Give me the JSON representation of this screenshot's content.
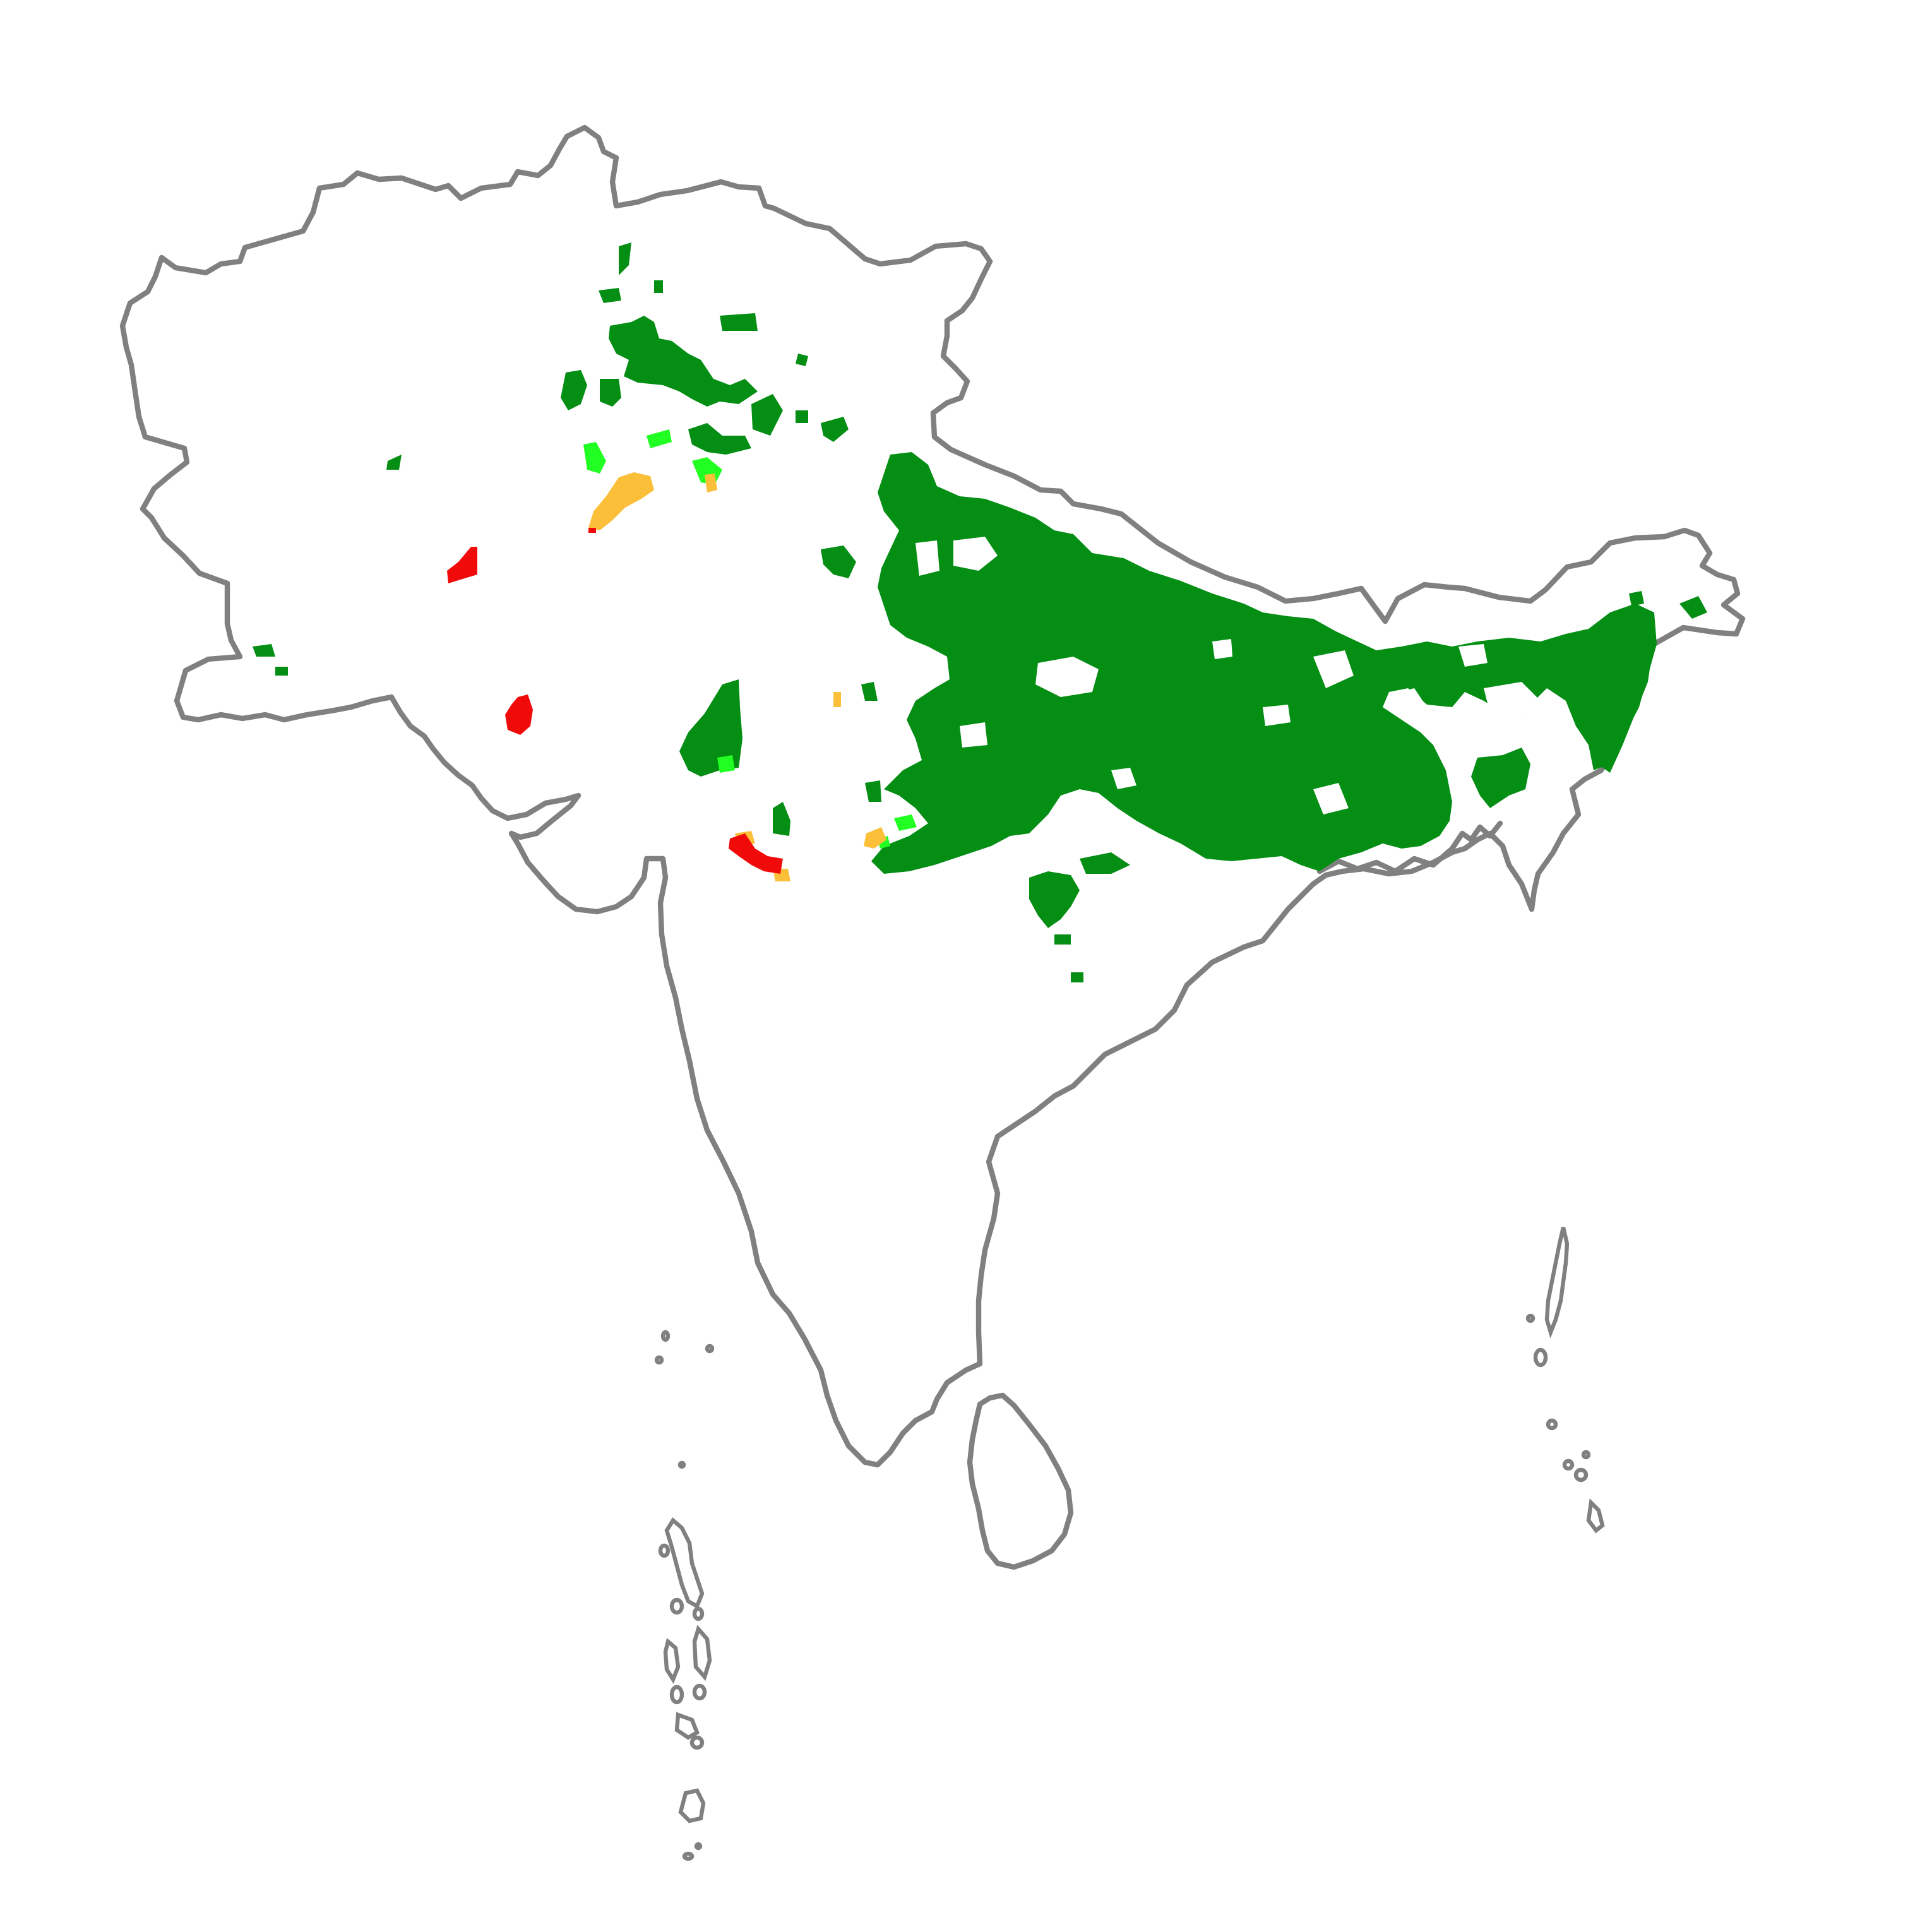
{
  "map": {
    "region": "",
    "outline_color": "#808080",
    "background_color": "#ffffff",
    "legend": []
  },
  "categories": [
    {
      "id": "dark-green",
      "color": "#058e14"
    },
    {
      "id": "bright-green",
      "color": "#22ff22"
    },
    {
      "id": "orange",
      "color": "#fbbf39"
    },
    {
      "id": "red",
      "color": "#f00a0a"
    }
  ]
}
